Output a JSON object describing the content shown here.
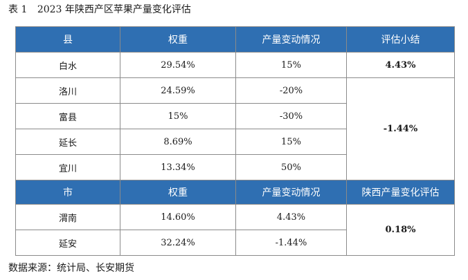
{
  "caption": {
    "number": "表 1",
    "title": "2023 年陕西产区苹果产量变化评估"
  },
  "county_table": {
    "headers": [
      "县",
      "权重",
      "产量变动情况",
      "评估小结"
    ],
    "rows": [
      {
        "name": "白水",
        "weight": "29.54%",
        "change": "15%"
      },
      {
        "name": "洛川",
        "weight": "24.59%",
        "change": "-20%"
      },
      {
        "name": "富县",
        "weight": "15%",
        "change": "-30%"
      },
      {
        "name": "延长",
        "weight": "8.69%",
        "change": "15%"
      },
      {
        "name": "宜川",
        "weight": "13.34%",
        "change": "50%"
      }
    ],
    "summary_baishui": "4.43%",
    "summary_others": "-1.44%"
  },
  "city_table": {
    "headers": [
      "市",
      "权重",
      "产量变动情况",
      "陕西产量变化评估"
    ],
    "rows": [
      {
        "name": "渭南",
        "weight": "14.60%",
        "change": "4.43%"
      },
      {
        "name": "延安",
        "weight": "32.24%",
        "change": "-1.44%"
      }
    ],
    "summary": "0.18%"
  },
  "source": "数据来源：统计局、长安期货"
}
